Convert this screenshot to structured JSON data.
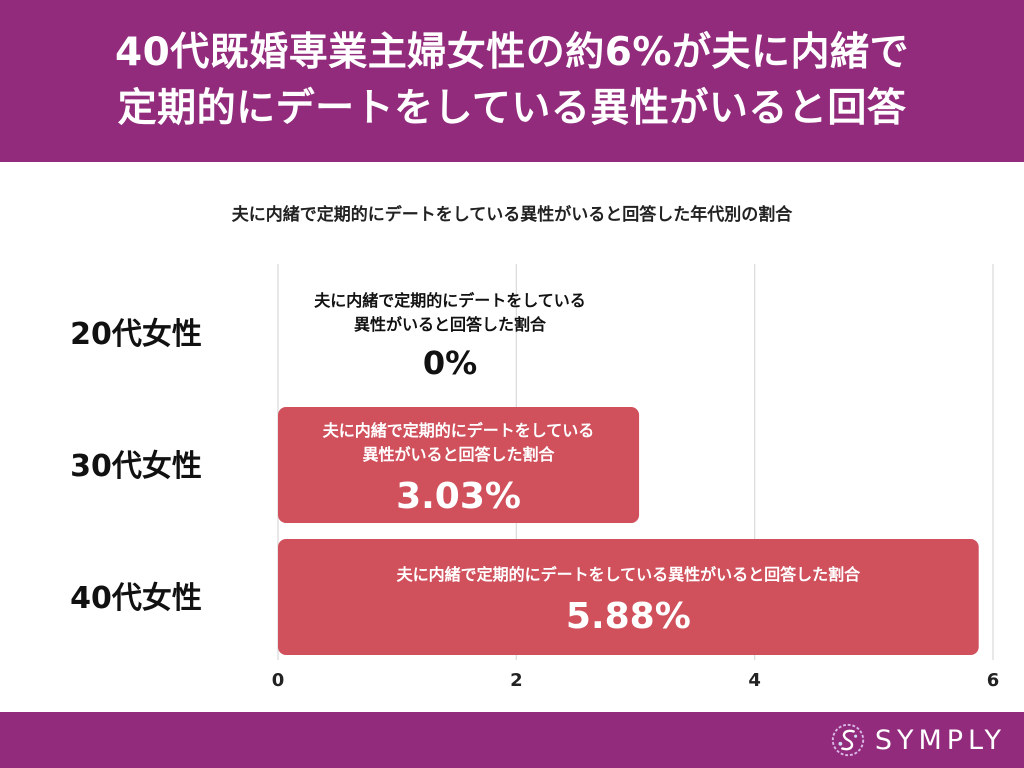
{
  "header": {
    "line1": "40代既婚専業主婦女性の約6%が夫に内緒で",
    "line2": "定期的にデートをしている異性がいると回答"
  },
  "chart_data": {
    "type": "bar",
    "orientation": "horizontal",
    "title": "夫に内緒で定期的にデートをしている異性がいると回答した年代別の割合",
    "categories": [
      "20代女性",
      "30代女性",
      "40代女性"
    ],
    "series": [
      {
        "name": "夫に内緒で定期的にデートをしている異性がいると回答した割合",
        "values": [
          0,
          3.03,
          5.88
        ]
      }
    ],
    "value_labels": [
      "0%",
      "3.03%",
      "5.88%"
    ],
    "bar_label_lines": [
      [
        "夫に内緒で定期的にデートをしている",
        "異性がいると回答した割合"
      ],
      [
        "夫に内緒で定期的にデートをしている",
        "異性がいると回答した割合"
      ],
      [
        "夫に内緒で定期的にデートをしている異性がいると回答した割合"
      ]
    ],
    "xlim": [
      0,
      6
    ],
    "xticks": [
      "0",
      "2",
      "4",
      "6"
    ],
    "grid": true,
    "bar_color": "#d0505c"
  },
  "footer": {
    "logo_text": "SYMPLY"
  },
  "colors": {
    "header_bg": "#922b7c",
    "footer_bg": "#922b7c",
    "bar": "#d0505c"
  }
}
